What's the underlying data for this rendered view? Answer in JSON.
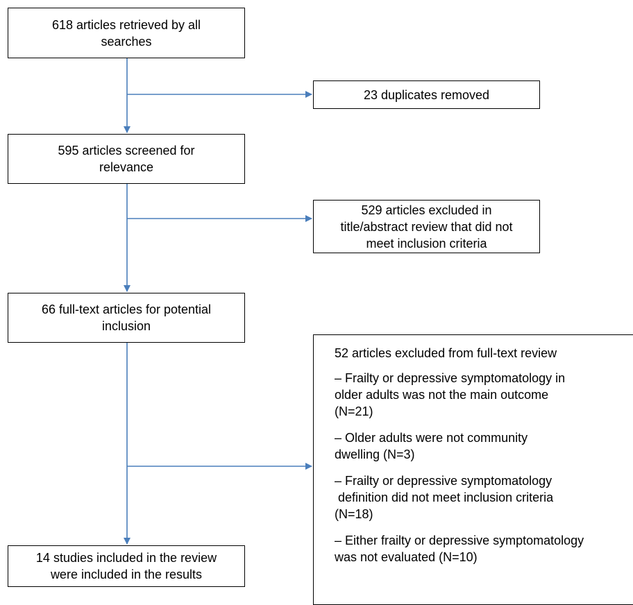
{
  "flow": {
    "retrieved": [
      "618 articles retrieved by all",
      "searches"
    ],
    "duplicates": [
      "23 duplicates removed"
    ],
    "screened": [
      "595 articles screened for",
      "relevance"
    ],
    "excluded_title": [
      "529 articles excluded in",
      "title/abstract review that did not",
      "meet inclusion criteria"
    ],
    "full_text": [
      "66 full-text articles for potential",
      "inclusion"
    ],
    "included": [
      "14 studies included in the review",
      "were included in the results"
    ]
  },
  "exclusions": {
    "title": "52 articles excluded from full-text review",
    "items": [
      [
        "– Frailty or depressive symptomatology in",
        "older adults was not the main outcome",
        "(N=21)"
      ],
      [
        "– Older adults were not community",
        "dwelling (N=3)"
      ],
      [
        "– Frailty or depressive symptomatology",
        " definition did not meet inclusion criteria",
        "(N=18)"
      ],
      [
        "– Either frailty or depressive symptomatology",
        "was not evaluated (N=10)"
      ]
    ]
  },
  "colors": {
    "connector": "#4a7ebb",
    "box_border": "#000000"
  }
}
